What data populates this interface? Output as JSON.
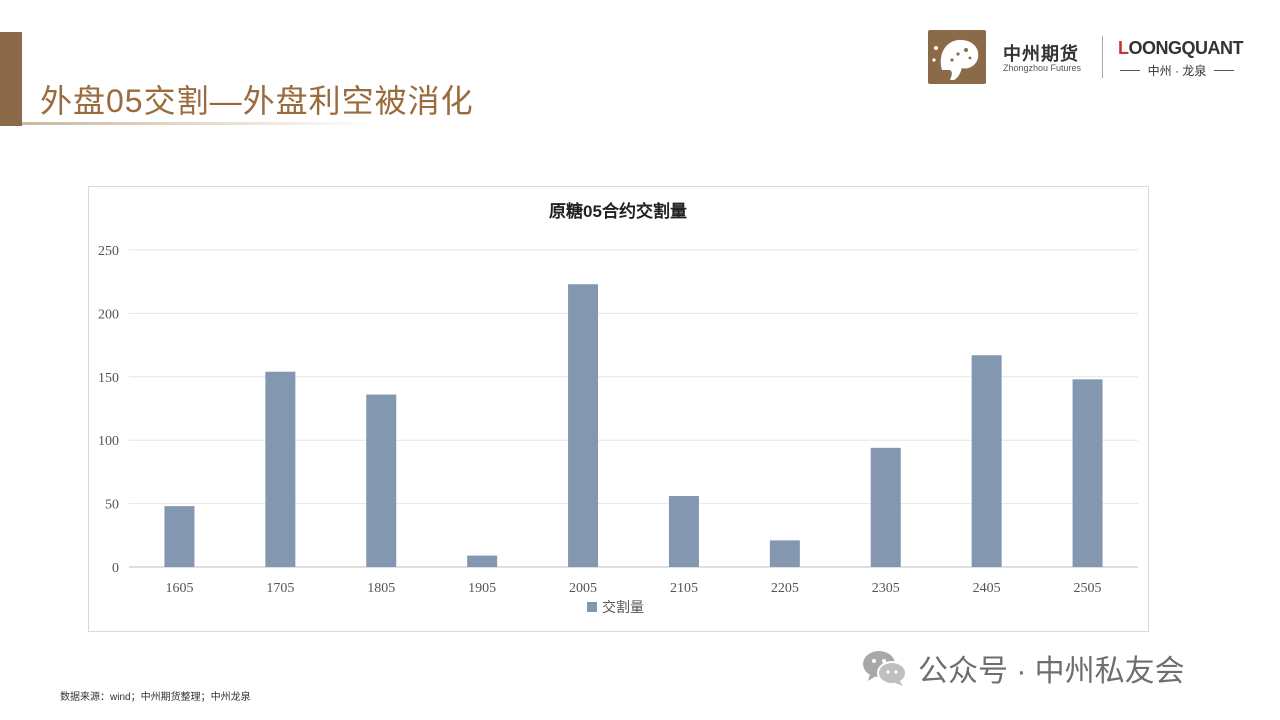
{
  "header": {
    "title": "外盘05交割—外盘利空被消化",
    "logo_name": "中州期货",
    "logo_sub": "Zhongzhou Futures",
    "brand2_lead": "L",
    "brand2_rest": "OONGQUANT",
    "brand2_sub": "中州 · 龙泉"
  },
  "footer": {
    "source": "数据来源：wind；中州期货整理；中州龙泉",
    "watermark": "公众号 · 中州私友会"
  },
  "colors": {
    "bar": "#8497b0",
    "title_text": "#9a6b3c",
    "brand": "#8b6a4a"
  },
  "chart_data": {
    "type": "bar",
    "title": "原糖05合约交割量",
    "categories": [
      "1605",
      "1705",
      "1805",
      "1905",
      "2005",
      "2105",
      "2205",
      "2305",
      "2405",
      "2505"
    ],
    "series": [
      {
        "name": "交割量",
        "values": [
          48,
          154,
          136,
          9,
          223,
          56,
          21,
          94,
          167,
          148
        ]
      }
    ],
    "ylim": [
      0,
      250
    ],
    "yticks": [
      0,
      50,
      100,
      150,
      200,
      250
    ],
    "legend": "bottom",
    "grid": true
  }
}
